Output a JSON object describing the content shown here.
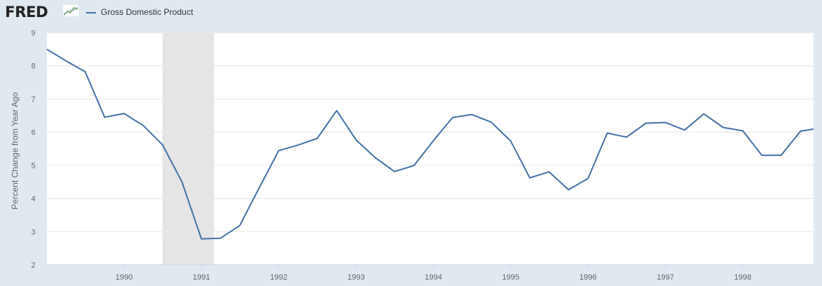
{
  "header": {
    "logo_text": "FRED",
    "logo_icon": "line-graph-icon"
  },
  "colors": {
    "series": "#4572a7",
    "recession": "#e5e5e5",
    "plot_bg": "#ffffff",
    "page_bg": "#e1e9f0",
    "grid": "#e6e6e6"
  },
  "chart_data": {
    "type": "line",
    "title": "",
    "xlabel": "",
    "ylabel": "Percent Change from Year Ago",
    "ylim": [
      2,
      9
    ],
    "yticks": [
      "2",
      "3",
      "4",
      "5",
      "6",
      "7",
      "8",
      "9"
    ],
    "xlim": [
      "1989-01-01",
      "1998-12-01"
    ],
    "xticks": [
      "1990",
      "1991",
      "1992",
      "1993",
      "1994",
      "1995",
      "1996",
      "1997",
      "1998"
    ],
    "grid": true,
    "legend_position": "top-left",
    "recessions": [
      {
        "start": "1990-07-01",
        "end": "1991-03-01"
      }
    ],
    "series": [
      {
        "name": "Gross Domestic Product",
        "x": [
          "1989-01-01",
          "1989-04-01",
          "1989-07-01",
          "1989-10-01",
          "1990-01-01",
          "1990-04-01",
          "1990-07-01",
          "1990-10-01",
          "1991-01-01",
          "1991-04-01",
          "1991-07-01",
          "1991-10-01",
          "1992-01-01",
          "1992-04-01",
          "1992-07-01",
          "1992-10-01",
          "1993-01-01",
          "1993-04-01",
          "1993-07-01",
          "1993-10-01",
          "1994-01-01",
          "1994-04-01",
          "1994-07-01",
          "1994-10-01",
          "1995-01-01",
          "1995-04-01",
          "1995-07-01",
          "1995-10-01",
          "1996-01-01",
          "1996-04-01",
          "1996-07-01",
          "1996-10-01",
          "1997-01-01",
          "1997-04-01",
          "1997-07-01",
          "1997-10-01",
          "1998-01-01",
          "1998-04-01",
          "1998-07-01",
          "1998-10-01",
          "1998-12-01"
        ],
        "values": [
          8.5,
          8.15,
          7.82,
          6.45,
          6.56,
          6.2,
          5.62,
          4.5,
          2.78,
          2.8,
          3.18,
          4.32,
          5.44,
          5.61,
          5.81,
          6.65,
          5.76,
          5.23,
          4.81,
          4.99,
          5.74,
          6.44,
          6.53,
          6.3,
          5.73,
          4.62,
          4.8,
          4.26,
          4.6,
          5.97,
          5.85,
          6.27,
          6.29,
          6.06,
          6.55,
          6.14,
          6.04,
          5.3,
          5.3,
          6.03,
          6.09
        ]
      }
    ]
  }
}
